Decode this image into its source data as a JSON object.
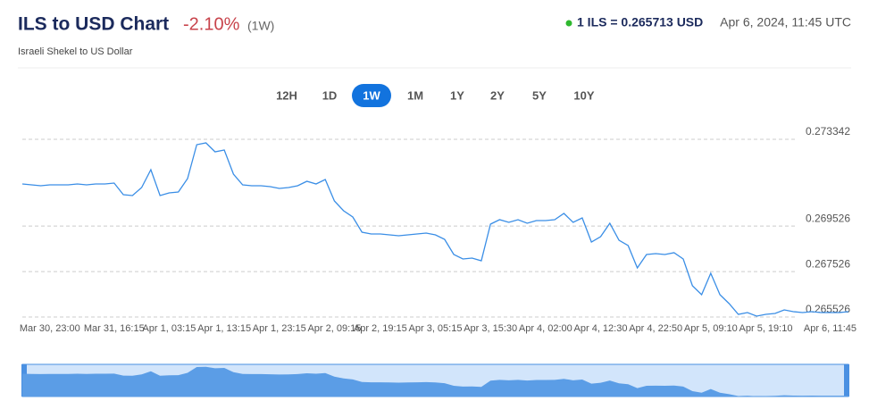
{
  "header": {
    "title": "ILS to USD Chart",
    "change": "-2.10%",
    "period": "(1W)",
    "subtitle": "Israeli Shekel to US Dollar",
    "rate": "1 ILS = 0.265713 USD",
    "timestamp": "Apr 6, 2024, 11:45 UTC"
  },
  "range_buttons": [
    {
      "label": "12H"
    },
    {
      "label": "1D"
    },
    {
      "label": "1W",
      "active": true
    },
    {
      "label": "1M"
    },
    {
      "label": "1Y"
    },
    {
      "label": "2Y"
    },
    {
      "label": "5Y"
    },
    {
      "label": "10Y"
    }
  ],
  "chart_data": {
    "type": "line",
    "color": "#3a8ee6",
    "grid": true,
    "ylim": [
      0.265526,
      0.273342
    ],
    "yticks": [
      0.273342,
      0.269526,
      0.267526,
      0.265526
    ],
    "categories": [
      null,
      null,
      null,
      "Mar 30, 23:00",
      null,
      null,
      null,
      null,
      null,
      null,
      "Mar 31, 16:15",
      null,
      null,
      null,
      null,
      null,
      "Apr 1, 03:15",
      null,
      null,
      null,
      null,
      null,
      "Apr 1, 13:15",
      null,
      null,
      null,
      null,
      null,
      "Apr 1, 23:15",
      null,
      null,
      null,
      null,
      null,
      "Apr 2, 09:15",
      null,
      null,
      null,
      null,
      "Apr 2, 19:15",
      null,
      null,
      null,
      null,
      null,
      "Apr 3, 05:15",
      null,
      null,
      null,
      null,
      null,
      "Apr 3, 15:30",
      null,
      null,
      null,
      null,
      null,
      "Apr 4, 02:00",
      null,
      null,
      null,
      null,
      null,
      "Apr 4, 12:30",
      null,
      null,
      null,
      null,
      null,
      "Apr 4, 22:50",
      null,
      null,
      null,
      null,
      null,
      "Apr 5, 09:10",
      null,
      null,
      null,
      null,
      null,
      "Apr 5, 19:10",
      null,
      null,
      null,
      null,
      null,
      null,
      "Apr 6, 11:45",
      null,
      null
    ],
    "values": [
      0.271379,
      0.271339,
      0.2713,
      0.271339,
      0.271339,
      0.271339,
      0.271379,
      0.271339,
      0.271379,
      0.271379,
      0.271418,
      0.270907,
      0.270868,
      0.271222,
      0.272007,
      0.270868,
      0.270986,
      0.271025,
      0.271614,
      0.273107,
      0.273186,
      0.272793,
      0.272871,
      0.271811,
      0.271339,
      0.2713,
      0.2713,
      0.271261,
      0.271182,
      0.271222,
      0.2713,
      0.271497,
      0.271379,
      0.271575,
      0.270632,
      0.2702,
      0.269925,
      0.269258,
      0.269179,
      0.269179,
      0.26914,
      0.2691,
      0.26914,
      0.269179,
      0.269218,
      0.26914,
      0.268943,
      0.268276,
      0.268079,
      0.268118,
      0.268001,
      0.269611,
      0.269808,
      0.26969,
      0.269808,
      0.26965,
      0.269768,
      0.269768,
      0.269808,
      0.270082,
      0.26969,
      0.269886,
      0.268826,
      0.269061,
      0.26965,
      0.268904,
      0.268668,
      0.267686,
      0.268276,
      0.268315,
      0.268276,
      0.268354,
      0.268079,
      0.266901,
      0.266508,
      0.267451,
      0.266508,
      0.266115,
      0.265644,
      0.265722,
      0.265565,
      0.265644,
      0.265683,
      0.26584,
      0.265762,
      0.265722,
      0.265762,
      0.265722,
      0.265722,
      0.265722,
      0.265762
    ]
  }
}
